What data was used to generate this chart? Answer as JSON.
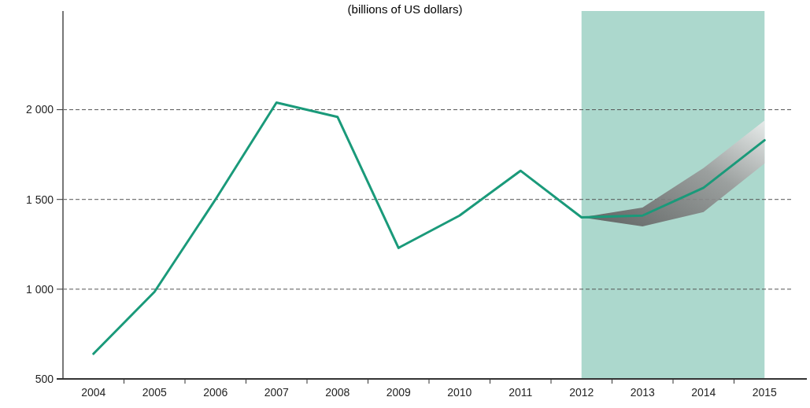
{
  "chart_data": {
    "type": "line",
    "title": "(billions of US dollars)",
    "categories": [
      "2004",
      "2005",
      "2006",
      "2007",
      "2008",
      "2009",
      "2010",
      "2011",
      "2012",
      "2013",
      "2014",
      "2015"
    ],
    "series": [
      {
        "color": "#1a9a7a",
        "values": [
          640,
          985,
          1500,
          2040,
          1960,
          1230,
          1410,
          1660,
          1400,
          1410,
          1565,
          1830
        ],
        "lower": [
          null,
          null,
          null,
          null,
          null,
          null,
          null,
          null,
          1400,
          1350,
          1430,
          1700
        ],
        "upper": [
          null,
          null,
          null,
          null,
          null,
          null,
          null,
          null,
          1400,
          1455,
          1675,
          1940
        ]
      }
    ],
    "ylim": [
      500,
      2550
    ],
    "yticks": [
      {
        "value": 500,
        "label": "500"
      },
      {
        "value": 1000,
        "label": "1 000"
      },
      {
        "value": 1500,
        "label": "1 500"
      },
      {
        "value": 2000,
        "label": "2 000"
      }
    ],
    "grid": "y",
    "line_style": "solid",
    "marker": "none",
    "bands": [
      {
        "axis": "x",
        "from": "2012",
        "to": "2015",
        "color": "#acd8cd"
      }
    ]
  }
}
